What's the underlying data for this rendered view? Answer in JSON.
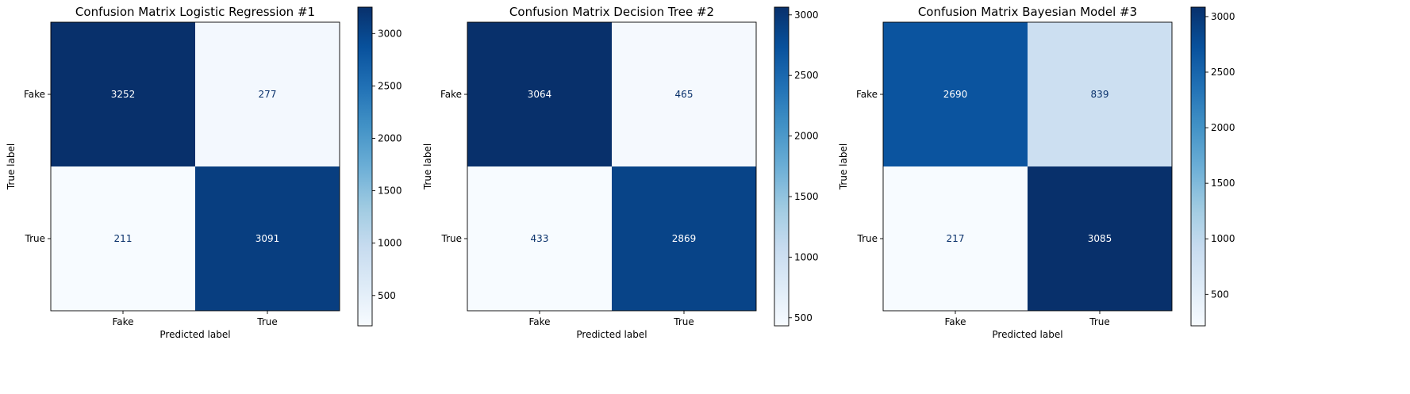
{
  "chart_data": [
    {
      "type": "heatmap",
      "title": "Confusion Matrix Logistic Regression #1",
      "xlabel": "Predicted label",
      "ylabel": "True label",
      "x_categories": [
        "Fake",
        "True"
      ],
      "y_categories": [
        "Fake",
        "True"
      ],
      "matrix": [
        [
          3252,
          277
        ],
        [
          211,
          3091
        ]
      ],
      "colormap": "Blues",
      "colorbar_ticks": [
        500,
        1000,
        1500,
        2000,
        2500,
        3000
      ]
    },
    {
      "type": "heatmap",
      "title": "Confusion Matrix Decision Tree #2",
      "xlabel": "Predicted label",
      "ylabel": "True label",
      "x_categories": [
        "Fake",
        "True"
      ],
      "y_categories": [
        "Fake",
        "True"
      ],
      "matrix": [
        [
          3064,
          465
        ],
        [
          433,
          2869
        ]
      ],
      "colormap": "Blues",
      "colorbar_ticks": [
        500,
        1000,
        1500,
        2000,
        2500,
        3000
      ]
    },
    {
      "type": "heatmap",
      "title": "Confusion Matrix Bayesian Model #3",
      "xlabel": "Predicted label",
      "ylabel": "True label",
      "x_categories": [
        "Fake",
        "True"
      ],
      "y_categories": [
        "Fake",
        "True"
      ],
      "matrix": [
        [
          2690,
          839
        ],
        [
          217,
          3085
        ]
      ],
      "colormap": "Blues",
      "colorbar_ticks": [
        500,
        1000,
        1500,
        2000,
        2500,
        3000
      ]
    }
  ]
}
